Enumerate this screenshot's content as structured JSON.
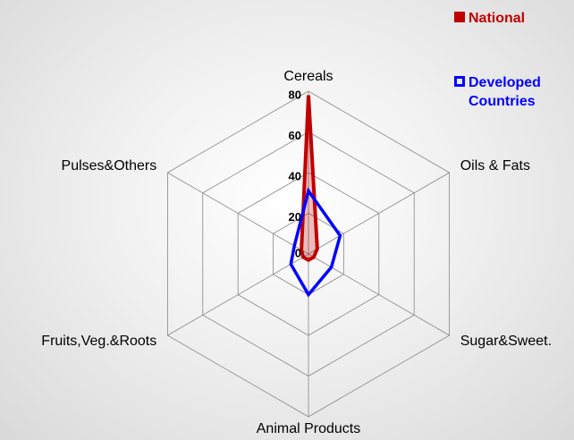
{
  "chart_data": {
    "type": "radar",
    "categories": [
      "Cereals",
      "Oils & Fats",
      "Sugar&Sweet.",
      "Animal Products",
      "Fruits,Veg.&Roots",
      "Pulses&Others"
    ],
    "series": [
      {
        "name": "National",
        "color": "#c00000",
        "values": [
          78,
          5,
          3,
          3,
          3,
          4
        ]
      },
      {
        "name": "Developed Countries",
        "color": "#0000ff",
        "values": [
          31,
          18,
          13,
          20,
          10,
          8
        ]
      }
    ],
    "ylim": [
      0,
      80
    ],
    "yticks": [
      0,
      20,
      40,
      60,
      80
    ],
    "grid": true
  }
}
